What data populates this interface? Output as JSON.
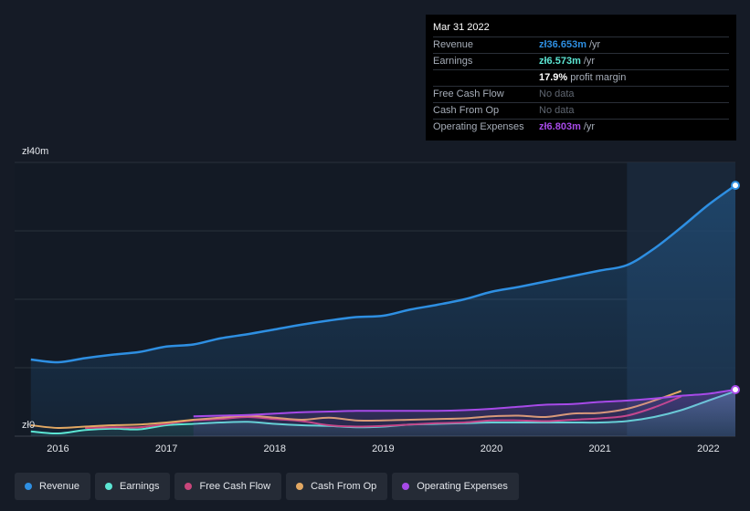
{
  "tooltip": {
    "date": "Mar 31 2022",
    "rows": [
      {
        "label": "Revenue",
        "value": "zł36.653m",
        "unit": "/yr",
        "color": "#2e8fe2"
      },
      {
        "label": "Earnings",
        "value": "zł6.573m",
        "unit": "/yr",
        "color": "#5ce5d3"
      },
      {
        "label": "",
        "value": "17.9%",
        "unit": "profit margin",
        "color": "#ffffff"
      },
      {
        "label": "Free Cash Flow",
        "nodata": "No data"
      },
      {
        "label": "Cash From Op",
        "nodata": "No data"
      },
      {
        "label": "Operating Expenses",
        "value": "zł6.803m",
        "unit": "/yr",
        "color": "#a74ae8"
      }
    ]
  },
  "legend": [
    {
      "label": "Revenue",
      "color": "#2e8fe2"
    },
    {
      "label": "Earnings",
      "color": "#5ce5d3"
    },
    {
      "label": "Free Cash Flow",
      "color": "#c9467b"
    },
    {
      "label": "Cash From Op",
      "color": "#e2a863"
    },
    {
      "label": "Operating Expenses",
      "color": "#a74ae8"
    }
  ],
  "chart_data": {
    "type": "line",
    "yticks": [
      "zł40m",
      "zł0"
    ],
    "ylim": [
      0,
      40
    ],
    "xlim": [
      2015.6,
      2022.25
    ],
    "highlight_start": 2021.25,
    "xticks": [
      {
        "label": "2016",
        "x": 2016.0
      },
      {
        "label": "2017",
        "x": 2017.0
      },
      {
        "label": "2018",
        "x": 2018.0
      },
      {
        "label": "2019",
        "x": 2019.0
      },
      {
        "label": "2020",
        "x": 2020.0
      },
      {
        "label": "2021",
        "x": 2021.0
      },
      {
        "label": "2022",
        "x": 2022.0
      }
    ],
    "series": [
      {
        "name": "Revenue",
        "color": "#2e8fe2",
        "fill": true,
        "end_marker": true,
        "x": [
          2015.75,
          2016.0,
          2016.25,
          2016.5,
          2016.75,
          2017.0,
          2017.25,
          2017.5,
          2017.75,
          2018.0,
          2018.25,
          2018.5,
          2018.75,
          2019.0,
          2019.25,
          2019.5,
          2019.75,
          2020.0,
          2020.25,
          2020.5,
          2020.75,
          2021.0,
          2021.25,
          2021.5,
          2021.75,
          2022.0,
          2022.25
        ],
        "y": [
          11.2,
          10.8,
          11.4,
          11.9,
          12.3,
          13.1,
          13.4,
          14.3,
          14.9,
          15.6,
          16.3,
          16.9,
          17.4,
          17.6,
          18.5,
          19.2,
          20.0,
          21.1,
          21.8,
          22.6,
          23.4,
          24.2,
          25.0,
          27.4,
          30.5,
          33.8,
          36.653
        ]
      },
      {
        "name": "Earnings",
        "color": "#5ce5d3",
        "fill": true,
        "end_marker": false,
        "x": [
          2015.75,
          2016.0,
          2016.25,
          2016.5,
          2016.75,
          2017.0,
          2017.25,
          2017.5,
          2017.75,
          2018.0,
          2018.25,
          2018.5,
          2018.75,
          2019.0,
          2019.25,
          2019.5,
          2019.75,
          2020.0,
          2020.25,
          2020.5,
          2020.75,
          2021.0,
          2021.25,
          2021.5,
          2021.75,
          2022.0,
          2022.25
        ],
        "y": [
          0.7,
          0.4,
          0.9,
          1.1,
          1.0,
          1.6,
          1.8,
          2.0,
          2.1,
          1.8,
          1.6,
          1.5,
          1.3,
          1.4,
          1.7,
          1.8,
          1.9,
          2.0,
          2.0,
          2.0,
          2.0,
          2.0,
          2.2,
          2.8,
          3.8,
          5.2,
          6.573
        ]
      },
      {
        "name": "Free Cash Flow",
        "color": "#c9467b",
        "fill": false,
        "end_marker": false,
        "x": [
          2016.25,
          2016.5,
          2016.75,
          2017.0,
          2017.25,
          2017.5,
          2017.75,
          2018.0,
          2018.25,
          2018.5,
          2018.75,
          2019.0,
          2019.25,
          2019.5,
          2019.75,
          2020.0,
          2020.25,
          2020.5,
          2020.75,
          2021.0,
          2021.25,
          2021.5,
          2021.75
        ],
        "y": [
          1.2,
          1.3,
          1.3,
          1.8,
          2.3,
          2.5,
          2.8,
          2.5,
          2.2,
          1.6,
          1.4,
          1.5,
          1.7,
          1.9,
          2.0,
          2.3,
          2.3,
          2.2,
          2.4,
          2.6,
          3.0,
          4.2,
          5.8
        ]
      },
      {
        "name": "Cash From Op",
        "color": "#e2a863",
        "fill": false,
        "end_marker": false,
        "x": [
          2015.75,
          2016.0,
          2016.25,
          2016.5,
          2016.75,
          2017.0,
          2017.25,
          2017.5,
          2017.75,
          2018.0,
          2018.25,
          2018.5,
          2018.75,
          2019.0,
          2019.25,
          2019.5,
          2019.75,
          2020.0,
          2020.25,
          2020.5,
          2020.75,
          2021.0,
          2021.25,
          2021.5,
          2021.75
        ],
        "y": [
          1.6,
          1.2,
          1.4,
          1.6,
          1.7,
          2.0,
          2.4,
          2.7,
          3.0,
          2.7,
          2.4,
          2.7,
          2.3,
          2.3,
          2.4,
          2.5,
          2.6,
          2.9,
          3.0,
          2.8,
          3.3,
          3.4,
          4.0,
          5.2,
          6.6
        ]
      },
      {
        "name": "Operating Expenses",
        "color": "#a74ae8",
        "fill": true,
        "end_marker": true,
        "x": [
          2017.25,
          2017.5,
          2017.75,
          2018.0,
          2018.25,
          2018.5,
          2018.75,
          2019.0,
          2019.25,
          2019.5,
          2019.75,
          2020.0,
          2020.25,
          2020.5,
          2020.75,
          2021.0,
          2021.25,
          2021.5,
          2021.75,
          2022.0,
          2022.25
        ],
        "y": [
          2.9,
          3.0,
          3.1,
          3.3,
          3.5,
          3.6,
          3.7,
          3.7,
          3.7,
          3.7,
          3.8,
          4.0,
          4.3,
          4.6,
          4.7,
          5.0,
          5.2,
          5.5,
          5.9,
          6.2,
          6.803
        ]
      }
    ]
  }
}
